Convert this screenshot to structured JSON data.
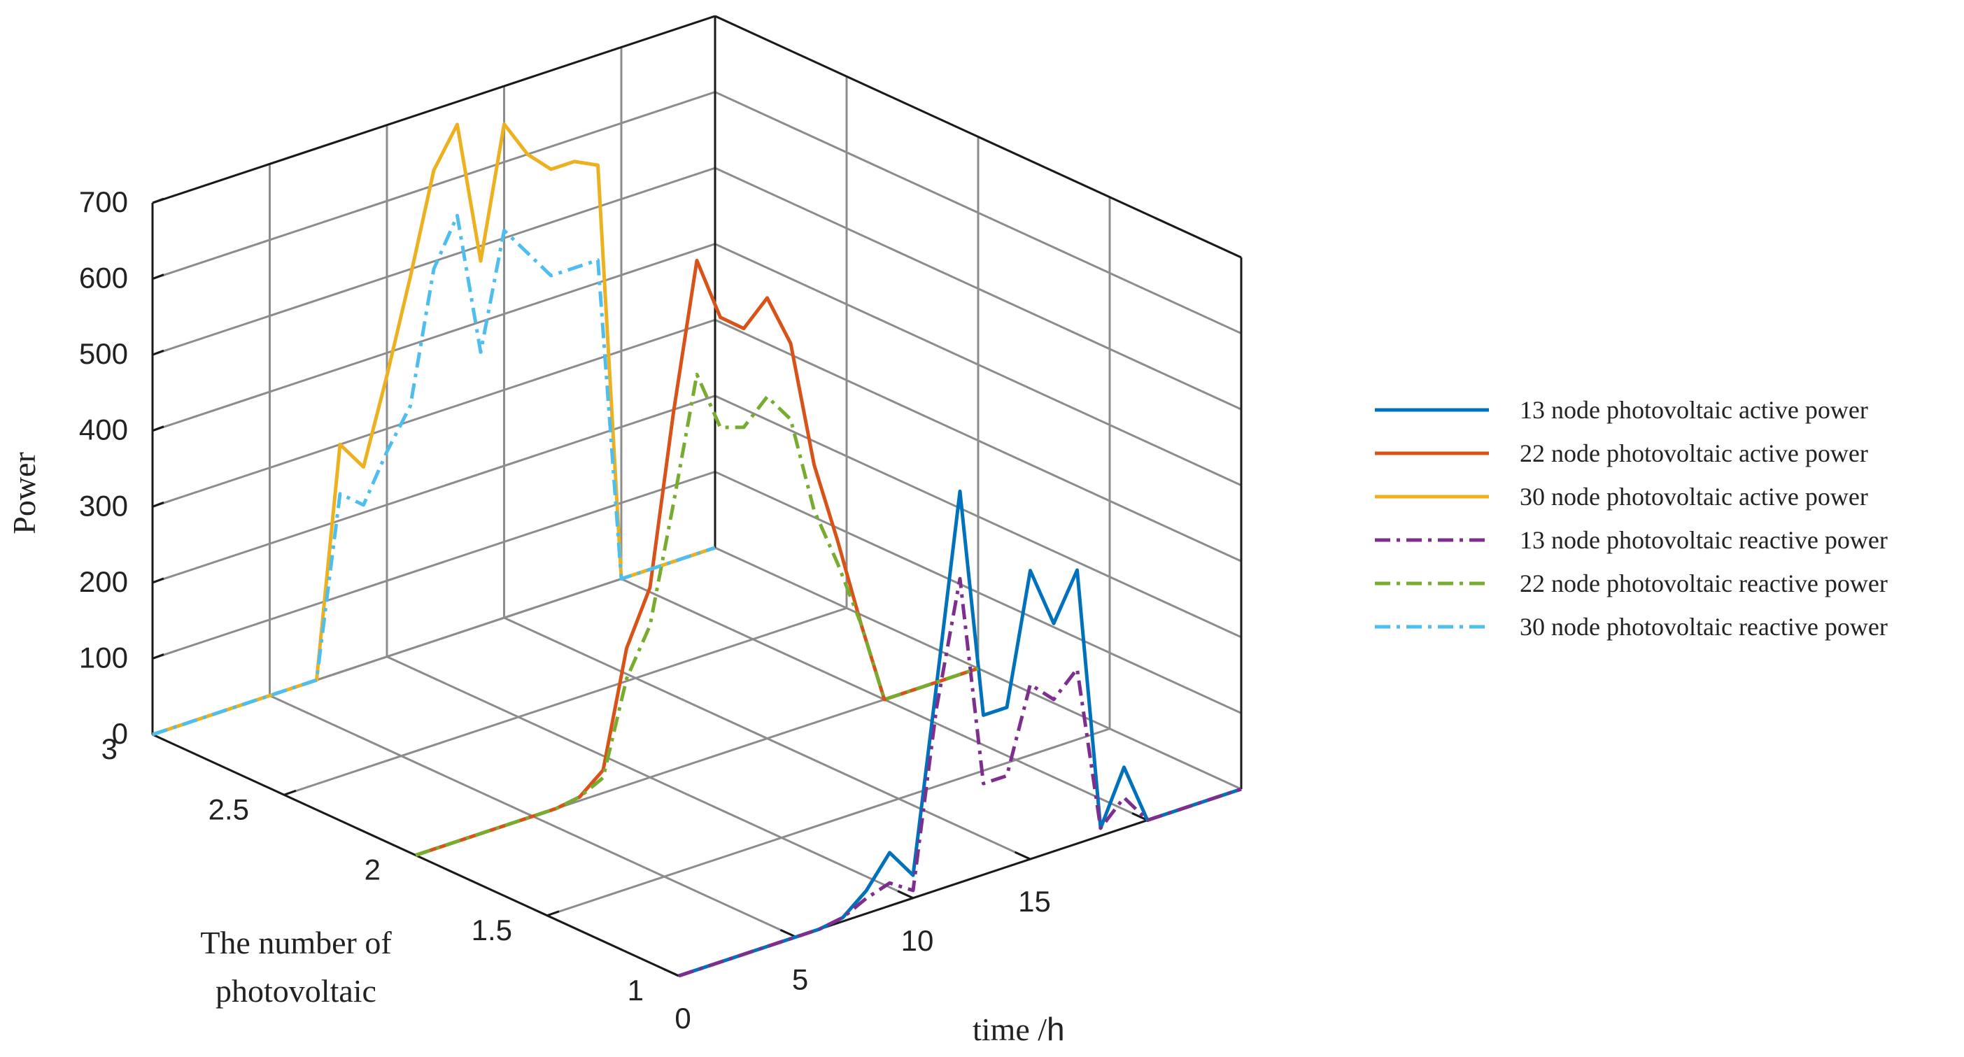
{
  "chart_data": {
    "type": "line",
    "projection": "3d",
    "xlabel": "time /h",
    "ylabel": "The number of photovoltaic",
    "zlabel": "Power",
    "xlim": [
      0,
      24
    ],
    "ylim": [
      1,
      3
    ],
    "zlim": [
      0,
      700
    ],
    "x_ticks": [
      "0",
      "5",
      "10",
      "15"
    ],
    "y_ticks": [
      "1",
      "1.5",
      "2",
      "2.5",
      "3"
    ],
    "z_ticks": [
      "0",
      "100",
      "200",
      "300",
      "400",
      "500",
      "600",
      "700"
    ],
    "grid": true,
    "legend_position": "right",
    "x": [
      0,
      1,
      2,
      3,
      4,
      5,
      6,
      7,
      8,
      9,
      10,
      11,
      12,
      13,
      14,
      15,
      16,
      17,
      18,
      19,
      20,
      21,
      22,
      23,
      24
    ],
    "series": [
      {
        "name": "13 node photovoltaic active power",
        "y_position": 1,
        "color": "#0072BD",
        "style": "solid",
        "values": [
          0,
          0,
          0,
          0,
          0,
          0,
          0,
          5,
          30,
          70,
          30,
          270,
          515,
          210,
          210,
          380,
          300,
          360,
          10,
          80,
          0,
          0,
          0,
          0,
          0
        ]
      },
      {
        "name": "22 node photovoltaic active power",
        "y_position": 2,
        "color": "#D95319",
        "style": "solid",
        "values": [
          0,
          0,
          0,
          0,
          0,
          0,
          0,
          5,
          30,
          180,
          250,
          470,
          660,
          575,
          550,
          580,
          510,
          340,
          230,
          110,
          0,
          0,
          0,
          0,
          0
        ]
      },
      {
        "name": "30 node photovoltaic active power",
        "y_position": 3,
        "color": "#EDB120",
        "style": "solid",
        "values": [
          0,
          0,
          0,
          0,
          0,
          0,
          0,
          0,
          300,
          260,
          370,
          490,
          620,
          670,
          480,
          650,
          600,
          570,
          570,
          555,
          0,
          0,
          0,
          0,
          0
        ]
      },
      {
        "name": "13 node photovoltaic reactive power",
        "y_position": 1,
        "color": "#7E2F8E",
        "style": "dashdot",
        "values": [
          0,
          0,
          0,
          0,
          0,
          0,
          0,
          5,
          20,
          30,
          10,
          240,
          400,
          120,
          120,
          230,
          200,
          230,
          10,
          40,
          0,
          0,
          0,
          0,
          0
        ]
      },
      {
        "name": "22 node photovoltaic reactive power",
        "y_position": 2,
        "color": "#77AC30",
        "style": "dashdot",
        "values": [
          0,
          0,
          0,
          0,
          0,
          0,
          0,
          5,
          20,
          140,
          200,
          350,
          510,
          430,
          420,
          450,
          410,
          280,
          200,
          110,
          0,
          0,
          0,
          0,
          0
        ]
      },
      {
        "name": "30 node photovoltaic reactive power",
        "y_position": 3,
        "color": "#4DBEEE",
        "style": "dashdot",
        "values": [
          0,
          0,
          0,
          0,
          0,
          0,
          0,
          0,
          235,
          210,
          270,
          320,
          490,
          550,
          360,
          510,
          470,
          430,
          430,
          430,
          0,
          0,
          0,
          0,
          0
        ]
      }
    ]
  }
}
